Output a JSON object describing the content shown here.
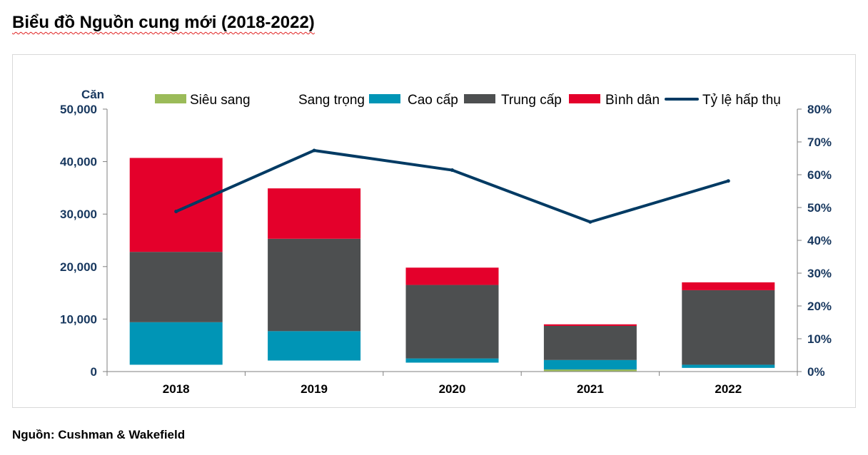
{
  "title": "Biểu đồ Nguồn cung mới (2018-2022)",
  "source": "Nguồn: Cushman & Wakefield",
  "chart_data": {
    "type": "bar",
    "stacked": true,
    "title": "",
    "ylabel": "Căn",
    "y2label": "",
    "categories": [
      "2018",
      "2019",
      "2020",
      "2021",
      "2022"
    ],
    "ylim": [
      0,
      50000
    ],
    "yticks": [
      "0",
      "10,000",
      "20,000",
      "30,000",
      "40,000",
      "50,000"
    ],
    "y2lim": [
      0,
      80
    ],
    "y2ticks": [
      "0%",
      "10%",
      "20%",
      "30%",
      "40%",
      "50%",
      "60%",
      "70%",
      "80%"
    ],
    "legend_position": "top",
    "grid": false,
    "series": [
      {
        "name": "Siêu sang",
        "type": "bar",
        "color": "#9bbb59",
        "values": [
          0,
          0,
          0,
          400,
          0
        ]
      },
      {
        "name": "Sang trọng",
        "type": "bar",
        "color": "#ffffff",
        "values": [
          1300,
          2100,
          1700,
          0,
          700
        ]
      },
      {
        "name": "Cao cấp",
        "type": "bar",
        "color": "#0095b6",
        "values": [
          8100,
          5600,
          800,
          1800,
          600
        ]
      },
      {
        "name": "Trung cấp",
        "type": "bar",
        "color": "#4d4f50",
        "values": [
          13400,
          17600,
          14000,
          6500,
          14200
        ]
      },
      {
        "name": "Bình dân",
        "type": "bar",
        "color": "#e4002b",
        "values": [
          17900,
          9600,
          3300,
          300,
          1500
        ]
      },
      {
        "name": "Tỷ lệ hấp thụ",
        "type": "line",
        "axis": "right",
        "color": "#003a63",
        "values": [
          48.8,
          67.4,
          61.4,
          45.6,
          58.1
        ]
      }
    ]
  }
}
